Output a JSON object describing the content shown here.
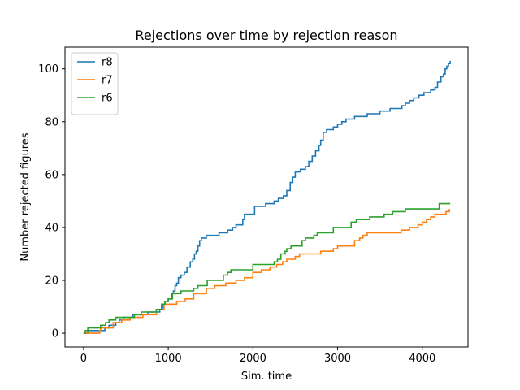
{
  "chart_data": {
    "type": "line",
    "title": "Rejections over time by rejection reason",
    "xlabel": "Sim. time",
    "ylabel": "Number rejected figures",
    "xlim": [
      -220,
      4540
    ],
    "ylim": [
      -5.2,
      108.2
    ],
    "xticks": [
      0,
      1000,
      2000,
      3000,
      4000
    ],
    "yticks": [
      0,
      20,
      40,
      60,
      80,
      100
    ],
    "grid": false,
    "legend_position": "top-left",
    "series": [
      {
        "name": "r8",
        "color": "#1f77b4",
        "points": [
          [
            0,
            0
          ],
          [
            50,
            1
          ],
          [
            250,
            2
          ],
          [
            300,
            3
          ],
          [
            360,
            3
          ],
          [
            380,
            4
          ],
          [
            420,
            5
          ],
          [
            470,
            6
          ],
          [
            580,
            7
          ],
          [
            700,
            7
          ],
          [
            760,
            8
          ],
          [
            900,
            9
          ],
          [
            940,
            11
          ],
          [
            960,
            12
          ],
          [
            980,
            12
          ],
          [
            1000,
            13
          ],
          [
            1040,
            15
          ],
          [
            1060,
            16
          ],
          [
            1080,
            18
          ],
          [
            1100,
            19
          ],
          [
            1120,
            21
          ],
          [
            1150,
            22
          ],
          [
            1190,
            23
          ],
          [
            1220,
            25
          ],
          [
            1260,
            27
          ],
          [
            1290,
            28
          ],
          [
            1310,
            30
          ],
          [
            1330,
            31
          ],
          [
            1350,
            33
          ],
          [
            1370,
            35
          ],
          [
            1390,
            36
          ],
          [
            1450,
            37
          ],
          [
            1510,
            37
          ],
          [
            1600,
            38
          ],
          [
            1700,
            39
          ],
          [
            1760,
            40
          ],
          [
            1800,
            41
          ],
          [
            1880,
            43
          ],
          [
            1900,
            45
          ],
          [
            2000,
            45
          ],
          [
            2020,
            48
          ],
          [
            2150,
            49
          ],
          [
            2200,
            49
          ],
          [
            2250,
            50
          ],
          [
            2300,
            51
          ],
          [
            2360,
            52
          ],
          [
            2400,
            54
          ],
          [
            2440,
            57
          ],
          [
            2470,
            59
          ],
          [
            2500,
            61
          ],
          [
            2560,
            62
          ],
          [
            2620,
            63
          ],
          [
            2660,
            65
          ],
          [
            2700,
            67
          ],
          [
            2740,
            69
          ],
          [
            2780,
            71
          ],
          [
            2800,
            73
          ],
          [
            2830,
            76
          ],
          [
            2870,
            77
          ],
          [
            2950,
            78
          ],
          [
            3000,
            79
          ],
          [
            3050,
            80
          ],
          [
            3100,
            81
          ],
          [
            3200,
            82
          ],
          [
            3350,
            83
          ],
          [
            3500,
            84
          ],
          [
            3620,
            85
          ],
          [
            3760,
            86
          ],
          [
            3800,
            87
          ],
          [
            3850,
            88
          ],
          [
            3900,
            89
          ],
          [
            3960,
            90
          ],
          [
            4020,
            91
          ],
          [
            4100,
            92
          ],
          [
            4150,
            93
          ],
          [
            4180,
            95
          ],
          [
            4220,
            97
          ],
          [
            4250,
            98
          ],
          [
            4270,
            100
          ],
          [
            4290,
            101
          ],
          [
            4310,
            102
          ],
          [
            4330,
            103
          ]
        ]
      },
      {
        "name": "r7",
        "color": "#ff7f0e",
        "points": [
          [
            0,
            0
          ],
          [
            190,
            1
          ],
          [
            200,
            2
          ],
          [
            350,
            4
          ],
          [
            450,
            5
          ],
          [
            550,
            6
          ],
          [
            700,
            7
          ],
          [
            860,
            9
          ],
          [
            950,
            11
          ],
          [
            1100,
            12
          ],
          [
            1200,
            13
          ],
          [
            1300,
            15
          ],
          [
            1450,
            17
          ],
          [
            1550,
            18
          ],
          [
            1680,
            19
          ],
          [
            1800,
            20
          ],
          [
            1900,
            21
          ],
          [
            2000,
            23
          ],
          [
            2100,
            24
          ],
          [
            2200,
            25
          ],
          [
            2280,
            26
          ],
          [
            2350,
            27
          ],
          [
            2400,
            28
          ],
          [
            2500,
            29
          ],
          [
            2550,
            30
          ],
          [
            2800,
            31
          ],
          [
            2950,
            32
          ],
          [
            3000,
            33
          ],
          [
            3200,
            35
          ],
          [
            3260,
            36
          ],
          [
            3300,
            37
          ],
          [
            3350,
            38
          ],
          [
            3750,
            39
          ],
          [
            3850,
            40
          ],
          [
            3950,
            41
          ],
          [
            4000,
            42
          ],
          [
            4050,
            43
          ],
          [
            4100,
            44
          ],
          [
            4150,
            45
          ],
          [
            4280,
            46
          ],
          [
            4320,
            47
          ]
        ]
      },
      {
        "name": "r6",
        "color": "#2ca02c",
        "points": [
          [
            0,
            0
          ],
          [
            20,
            1
          ],
          [
            50,
            2
          ],
          [
            200,
            3
          ],
          [
            260,
            4
          ],
          [
            300,
            5
          ],
          [
            380,
            6
          ],
          [
            600,
            7
          ],
          [
            680,
            8
          ],
          [
            860,
            9
          ],
          [
            920,
            11
          ],
          [
            960,
            12
          ],
          [
            1000,
            13
          ],
          [
            1050,
            15
          ],
          [
            1150,
            16
          ],
          [
            1300,
            17
          ],
          [
            1350,
            18
          ],
          [
            1460,
            20
          ],
          [
            1650,
            22
          ],
          [
            1700,
            23
          ],
          [
            1740,
            24
          ],
          [
            2000,
            26
          ],
          [
            2250,
            27
          ],
          [
            2290,
            28
          ],
          [
            2330,
            30
          ],
          [
            2380,
            31
          ],
          [
            2400,
            32
          ],
          [
            2450,
            33
          ],
          [
            2580,
            35
          ],
          [
            2620,
            36
          ],
          [
            2720,
            37
          ],
          [
            2760,
            38
          ],
          [
            2950,
            40
          ],
          [
            3160,
            42
          ],
          [
            3220,
            43
          ],
          [
            3380,
            44
          ],
          [
            3550,
            45
          ],
          [
            3650,
            46
          ],
          [
            3800,
            47
          ],
          [
            4200,
            49
          ],
          [
            4330,
            49
          ]
        ]
      }
    ]
  }
}
